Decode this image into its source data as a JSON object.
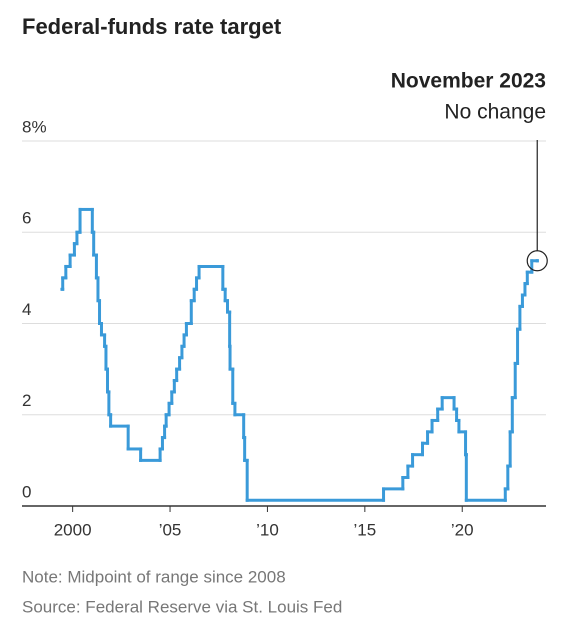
{
  "chart_data": {
    "type": "step",
    "title": "Federal-funds rate target",
    "annotation": {
      "title": "November 2023",
      "text": "No change"
    },
    "notes": [
      "Note: Midpoint of range since 2008",
      "Source: Federal Reserve via St. Louis Fed"
    ],
    "color": "#3a9ad9",
    "grid": true,
    "xlim": [
      1997.4,
      2024.3
    ],
    "ylim": [
      0,
      8
    ],
    "xticks": [
      2000,
      {
        "value": 2005,
        "label": "’05"
      },
      {
        "value": 2010,
        "label": "’10"
      },
      {
        "value": 2015,
        "label": "’15"
      },
      {
        "value": 2020,
        "label": "’20"
      }
    ],
    "yticks": [
      0,
      2,
      4,
      6,
      {
        "value": 8,
        "label": "8%"
      }
    ],
    "x": [
      1999.45,
      1999.49,
      1999.65,
      1999.87,
      2000.09,
      2000.22,
      2000.38,
      2001.01,
      2001.08,
      2001.22,
      2001.3,
      2001.38,
      2001.48,
      2001.64,
      2001.71,
      2001.79,
      2001.86,
      2001.95,
      2002.85,
      2003.49,
      2004.49,
      2004.61,
      2004.72,
      2004.8,
      2004.95,
      2005.09,
      2005.22,
      2005.34,
      2005.49,
      2005.61,
      2005.72,
      2005.84,
      2006.09,
      2006.24,
      2006.36,
      2006.49,
      2007.71,
      2007.83,
      2007.95,
      2008.06,
      2008.08,
      2008.22,
      2008.33,
      2008.78,
      2008.83,
      2008.96,
      2015.96,
      2016.95,
      2017.21,
      2017.45,
      2017.96,
      2018.22,
      2018.45,
      2018.74,
      2018.97,
      2019.58,
      2019.71,
      2019.83,
      2020.17,
      2020.21,
      2022.21,
      2022.34,
      2022.46,
      2022.57,
      2022.72,
      2022.84,
      2022.96,
      2023.09,
      2023.22,
      2023.34,
      2023.57,
      2023.85
    ],
    "values": [
      4.75,
      5.0,
      5.25,
      5.5,
      5.75,
      6.0,
      6.5,
      6.0,
      5.5,
      5.0,
      4.5,
      4.0,
      3.75,
      3.5,
      3.0,
      2.5,
      2.0,
      1.75,
      1.25,
      1.0,
      1.25,
      1.5,
      1.75,
      2.0,
      2.25,
      2.5,
      2.75,
      3.0,
      3.25,
      3.5,
      3.75,
      4.0,
      4.5,
      4.75,
      5.0,
      5.25,
      4.75,
      4.5,
      4.25,
      3.5,
      3.0,
      2.25,
      2.0,
      1.5,
      1.0,
      0.125,
      0.375,
      0.625,
      0.875,
      1.125,
      1.375,
      1.625,
      1.875,
      2.125,
      2.375,
      2.125,
      1.875,
      1.625,
      1.125,
      0.125,
      0.375,
      0.875,
      1.625,
      2.375,
      3.125,
      3.875,
      4.375,
      4.625,
      4.875,
      5.125,
      5.375,
      5.375
    ]
  }
}
